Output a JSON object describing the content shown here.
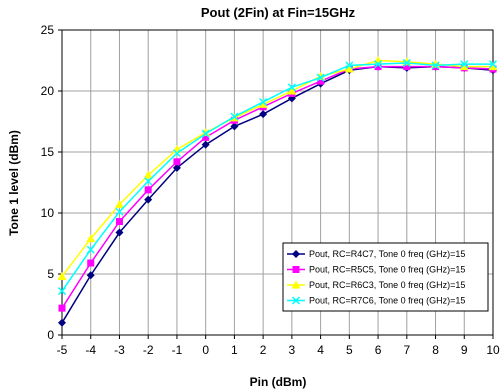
{
  "chart_data": {
    "type": "line",
    "title": "Pout (2Fin) at Fin=15GHz",
    "xlabel": "Pin (dBm)",
    "ylabel": "Tone 1 level (dBm)",
    "xlim": [
      -5,
      10
    ],
    "ylim": [
      0,
      25
    ],
    "x": [
      -5,
      -4,
      -3,
      -2,
      -1,
      0,
      1,
      2,
      3,
      4,
      5,
      6,
      7,
      8,
      9,
      10
    ],
    "xticks": [
      "-5",
      "-4",
      "-3",
      "-2",
      "-1",
      "0",
      "1",
      "2",
      "3",
      "4",
      "5",
      "6",
      "7",
      "8",
      "9",
      "10"
    ],
    "yticks": [
      "0",
      "5",
      "10",
      "15",
      "20",
      "25"
    ],
    "grid": true,
    "legend_position": "bottom-right",
    "series": [
      {
        "name": "Pout, RC=R4C7, Tone 0 freq (GHz)=15",
        "color": "#000080",
        "marker": "diamond",
        "values": [
          1.0,
          4.9,
          8.4,
          11.1,
          13.7,
          15.6,
          17.1,
          18.1,
          19.4,
          20.6,
          21.7,
          22.0,
          21.9,
          22.0,
          21.9,
          21.7
        ]
      },
      {
        "name": "Pout, RC=R5C5, Tone 0 freq (GHz)=15",
        "color": "#ff00ff",
        "marker": "square",
        "values": [
          2.2,
          5.9,
          9.3,
          11.9,
          14.2,
          16.2,
          17.6,
          18.7,
          19.8,
          20.8,
          21.8,
          22.0,
          22.0,
          22.0,
          21.9,
          21.8
        ]
      },
      {
        "name": "Pout, RC=R6C3, Tone 0 freq (GHz)=15",
        "color": "#ffff00",
        "marker": "triangle",
        "values": [
          4.8,
          7.9,
          10.7,
          13.1,
          15.2,
          16.6,
          17.8,
          18.9,
          20.0,
          21.2,
          21.8,
          22.5,
          22.4,
          22.2,
          22.0,
          22.0
        ]
      },
      {
        "name": "Pout, RC=R7C6, Tone 0 freq (GHz)=15",
        "color": "#00ffff",
        "marker": "x",
        "values": [
          3.6,
          7.0,
          10.1,
          12.6,
          14.9,
          16.5,
          17.9,
          19.1,
          20.3,
          21.1,
          22.1,
          22.2,
          22.3,
          22.1,
          22.2,
          22.2
        ]
      }
    ]
  }
}
